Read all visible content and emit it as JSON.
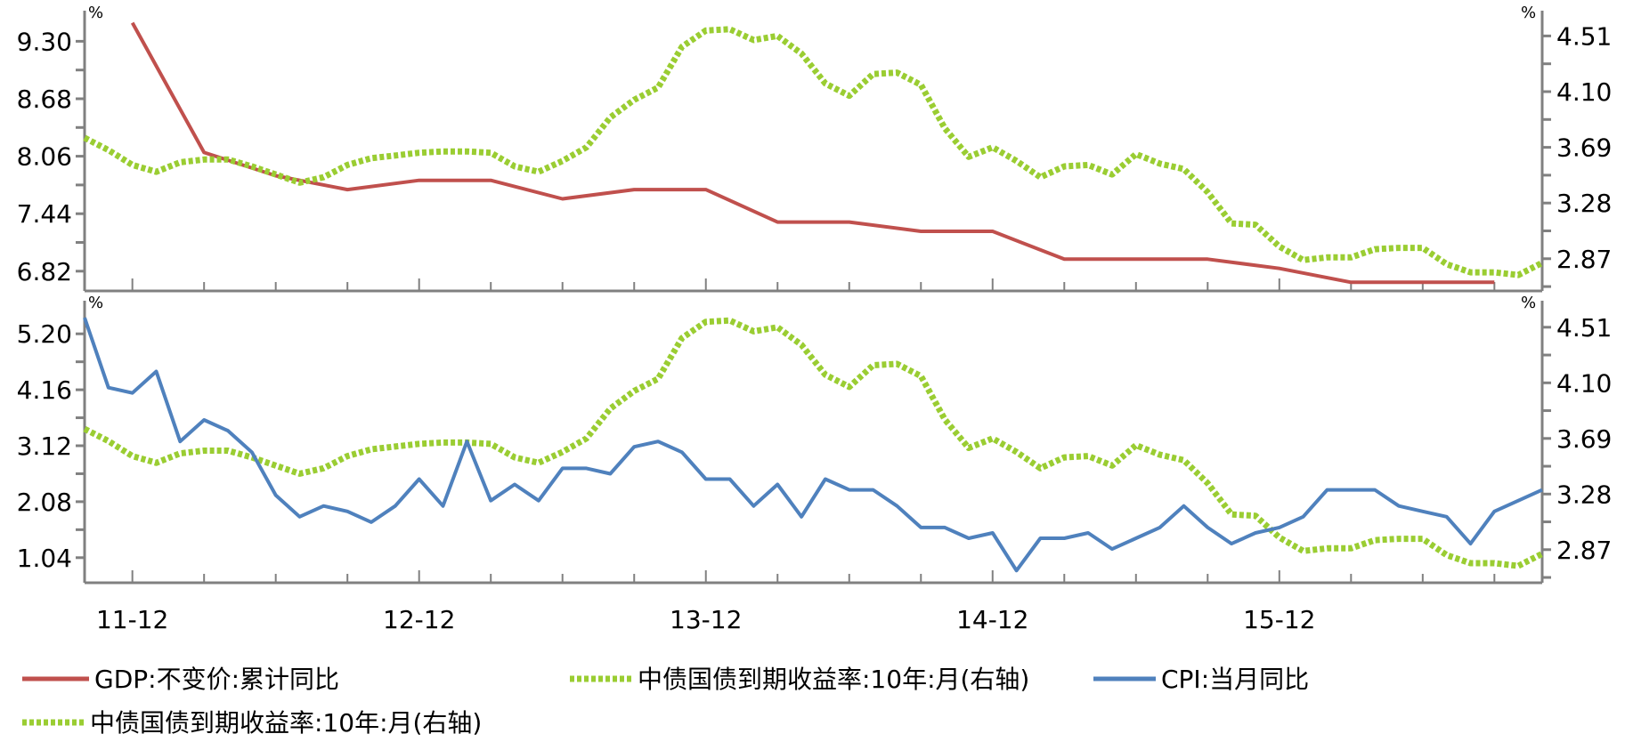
{
  "chart_data": [
    {
      "type": "line",
      "title": "",
      "left_unit": "%",
      "right_unit": "%",
      "left_ticks": [
        "9.30",
        "8.68",
        "8.06",
        "7.44",
        "6.82"
      ],
      "left_ylim": [
        6.5,
        9.5
      ],
      "right_ticks": [
        "4.51",
        "4.10",
        "3.69",
        "3.28",
        "2.87"
      ],
      "right_ylim": [
        2.74,
        4.64
      ],
      "series": [
        {
          "name": "GDP:不变价:累计同比",
          "axis": "left",
          "color": "#c0504d",
          "style": "solid",
          "points": [
            [
              "2011-12",
              9.5
            ],
            [
              "2012-03",
              8.1
            ],
            [
              "2012-06",
              7.85
            ],
            [
              "2012-09",
              7.7
            ],
            [
              "2012-12",
              7.8
            ],
            [
              "2013-03",
              7.8
            ],
            [
              "2013-06",
              7.6
            ],
            [
              "2013-09",
              7.7
            ],
            [
              "2013-12",
              7.7
            ],
            [
              "2014-03",
              7.35
            ],
            [
              "2014-06",
              7.35
            ],
            [
              "2014-09",
              7.25
            ],
            [
              "2014-12",
              7.25
            ],
            [
              "2015-03",
              6.95
            ],
            [
              "2015-06",
              6.95
            ],
            [
              "2015-09",
              6.95
            ],
            [
              "2015-12",
              6.85
            ],
            [
              "2016-03",
              6.7
            ],
            [
              "2016-06",
              6.7
            ],
            [
              "2016-09",
              6.7
            ]
          ]
        },
        {
          "name": "中债国债到期收益率:10年:月(右轴)",
          "axis": "right",
          "color": "#9acd32",
          "style": "dotted",
          "points": [
            [
              "2011-10",
              3.76
            ],
            [
              "2011-11",
              3.67
            ],
            [
              "2011-12",
              3.56
            ],
            [
              "2012-01",
              3.51
            ],
            [
              "2012-02",
              3.58
            ],
            [
              "2012-03",
              3.6
            ],
            [
              "2012-04",
              3.6
            ],
            [
              "2012-05",
              3.55
            ],
            [
              "2012-06",
              3.49
            ],
            [
              "2012-07",
              3.43
            ],
            [
              "2012-08",
              3.47
            ],
            [
              "2012-09",
              3.56
            ],
            [
              "2012-10",
              3.61
            ],
            [
              "2012-11",
              3.63
            ],
            [
              "2012-12",
              3.65
            ],
            [
              "2013-01",
              3.66
            ],
            [
              "2013-02",
              3.66
            ],
            [
              "2013-03",
              3.65
            ],
            [
              "2013-04",
              3.55
            ],
            [
              "2013-05",
              3.51
            ],
            [
              "2013-06",
              3.59
            ],
            [
              "2013-07",
              3.69
            ],
            [
              "2013-08",
              3.91
            ],
            [
              "2013-09",
              4.04
            ],
            [
              "2013-10",
              4.13
            ],
            [
              "2013-11",
              4.43
            ],
            [
              "2013-12",
              4.55
            ],
            [
              "2014-01",
              4.56
            ],
            [
              "2014-02",
              4.48
            ],
            [
              "2014-03",
              4.51
            ],
            [
              "2014-04",
              4.38
            ],
            [
              "2014-05",
              4.16
            ],
            [
              "2014-06",
              4.07
            ],
            [
              "2014-07",
              4.23
            ],
            [
              "2014-08",
              4.24
            ],
            [
              "2014-09",
              4.15
            ],
            [
              "2014-10",
              3.83
            ],
            [
              "2014-11",
              3.62
            ],
            [
              "2014-12",
              3.69
            ],
            [
              "2015-01",
              3.59
            ],
            [
              "2015-02",
              3.47
            ],
            [
              "2015-03",
              3.55
            ],
            [
              "2015-04",
              3.56
            ],
            [
              "2015-05",
              3.49
            ],
            [
              "2015-06",
              3.64
            ],
            [
              "2015-07",
              3.57
            ],
            [
              "2015-08",
              3.53
            ],
            [
              "2015-09",
              3.36
            ],
            [
              "2015-10",
              3.13
            ],
            [
              "2015-11",
              3.12
            ],
            [
              "2015-12",
              2.96
            ],
            [
              "2016-01",
              2.86
            ],
            [
              "2016-02",
              2.88
            ],
            [
              "2016-03",
              2.88
            ],
            [
              "2016-04",
              2.94
            ],
            [
              "2016-05",
              2.95
            ],
            [
              "2016-06",
              2.95
            ],
            [
              "2016-07",
              2.83
            ],
            [
              "2016-08",
              2.77
            ],
            [
              "2016-09",
              2.77
            ],
            [
              "2016-10",
              2.75
            ],
            [
              "2016-11",
              2.84
            ]
          ]
        }
      ]
    },
    {
      "type": "line",
      "title": "",
      "left_unit": "%",
      "right_unit": "%",
      "left_ticks": [
        "5.20",
        "4.16",
        "3.12",
        "2.08",
        "1.04"
      ],
      "left_ylim": [
        0.6,
        5.6
      ],
      "right_ticks": [
        "4.51",
        "4.10",
        "3.69",
        "3.28",
        "2.87"
      ],
      "right_ylim": [
        2.74,
        4.64
      ],
      "series": [
        {
          "name": "中债国债到期收益率:10年:月(右轴)",
          "axis": "right",
          "color": "#9acd32",
          "style": "dotted",
          "points": [
            [
              "2011-10",
              3.76
            ],
            [
              "2011-11",
              3.67
            ],
            [
              "2011-12",
              3.56
            ],
            [
              "2012-01",
              3.51
            ],
            [
              "2012-02",
              3.58
            ],
            [
              "2012-03",
              3.6
            ],
            [
              "2012-04",
              3.6
            ],
            [
              "2012-05",
              3.55
            ],
            [
              "2012-06",
              3.49
            ],
            [
              "2012-07",
              3.43
            ],
            [
              "2012-08",
              3.47
            ],
            [
              "2012-09",
              3.56
            ],
            [
              "2012-10",
              3.61
            ],
            [
              "2012-11",
              3.63
            ],
            [
              "2012-12",
              3.65
            ],
            [
              "2013-01",
              3.66
            ],
            [
              "2013-02",
              3.66
            ],
            [
              "2013-03",
              3.65
            ],
            [
              "2013-04",
              3.55
            ],
            [
              "2013-05",
              3.51
            ],
            [
              "2013-06",
              3.59
            ],
            [
              "2013-07",
              3.69
            ],
            [
              "2013-08",
              3.91
            ],
            [
              "2013-09",
              4.04
            ],
            [
              "2013-10",
              4.13
            ],
            [
              "2013-11",
              4.43
            ],
            [
              "2013-12",
              4.55
            ],
            [
              "2014-01",
              4.56
            ],
            [
              "2014-02",
              4.48
            ],
            [
              "2014-03",
              4.51
            ],
            [
              "2014-04",
              4.38
            ],
            [
              "2014-05",
              4.16
            ],
            [
              "2014-06",
              4.07
            ],
            [
              "2014-07",
              4.23
            ],
            [
              "2014-08",
              4.24
            ],
            [
              "2014-09",
              4.15
            ],
            [
              "2014-10",
              3.83
            ],
            [
              "2014-11",
              3.62
            ],
            [
              "2014-12",
              3.69
            ],
            [
              "2015-01",
              3.59
            ],
            [
              "2015-02",
              3.47
            ],
            [
              "2015-03",
              3.55
            ],
            [
              "2015-04",
              3.56
            ],
            [
              "2015-05",
              3.49
            ],
            [
              "2015-06",
              3.64
            ],
            [
              "2015-07",
              3.57
            ],
            [
              "2015-08",
              3.53
            ],
            [
              "2015-09",
              3.36
            ],
            [
              "2015-10",
              3.13
            ],
            [
              "2015-11",
              3.12
            ],
            [
              "2015-12",
              2.96
            ],
            [
              "2016-01",
              2.86
            ],
            [
              "2016-02",
              2.88
            ],
            [
              "2016-03",
              2.88
            ],
            [
              "2016-04",
              2.94
            ],
            [
              "2016-05",
              2.95
            ],
            [
              "2016-06",
              2.95
            ],
            [
              "2016-07",
              2.83
            ],
            [
              "2016-08",
              2.77
            ],
            [
              "2016-09",
              2.77
            ],
            [
              "2016-10",
              2.75
            ],
            [
              "2016-11",
              2.84
            ]
          ]
        },
        {
          "name": "CPI:当月同比",
          "axis": "left",
          "color": "#4f81bd",
          "style": "solid",
          "points": [
            [
              "2011-10",
              5.5
            ],
            [
              "2011-11",
              4.2
            ],
            [
              "2011-12",
              4.1
            ],
            [
              "2012-01",
              4.5
            ],
            [
              "2012-02",
              3.2
            ],
            [
              "2012-03",
              3.6
            ],
            [
              "2012-04",
              3.4
            ],
            [
              "2012-05",
              3.0
            ],
            [
              "2012-06",
              2.2
            ],
            [
              "2012-07",
              1.8
            ],
            [
              "2012-08",
              2.0
            ],
            [
              "2012-09",
              1.9
            ],
            [
              "2012-10",
              1.7
            ],
            [
              "2012-11",
              2.0
            ],
            [
              "2012-12",
              2.5
            ],
            [
              "2013-01",
              2.0
            ],
            [
              "2013-02",
              3.2
            ],
            [
              "2013-03",
              2.1
            ],
            [
              "2013-04",
              2.4
            ],
            [
              "2013-05",
              2.1
            ],
            [
              "2013-06",
              2.7
            ],
            [
              "2013-07",
              2.7
            ],
            [
              "2013-08",
              2.6
            ],
            [
              "2013-09",
              3.1
            ],
            [
              "2013-10",
              3.2
            ],
            [
              "2013-11",
              3.0
            ],
            [
              "2013-12",
              2.5
            ],
            [
              "2014-01",
              2.5
            ],
            [
              "2014-02",
              2.0
            ],
            [
              "2014-03",
              2.4
            ],
            [
              "2014-04",
              1.8
            ],
            [
              "2014-05",
              2.5
            ],
            [
              "2014-06",
              2.3
            ],
            [
              "2014-07",
              2.3
            ],
            [
              "2014-08",
              2.0
            ],
            [
              "2014-09",
              1.6
            ],
            [
              "2014-10",
              1.6
            ],
            [
              "2014-11",
              1.4
            ],
            [
              "2014-12",
              1.5
            ],
            [
              "2015-01",
              0.8
            ],
            [
              "2015-02",
              1.4
            ],
            [
              "2015-03",
              1.4
            ],
            [
              "2015-04",
              1.5
            ],
            [
              "2015-05",
              1.2
            ],
            [
              "2015-06",
              1.4
            ],
            [
              "2015-07",
              1.6
            ],
            [
              "2015-08",
              2.0
            ],
            [
              "2015-09",
              1.6
            ],
            [
              "2015-10",
              1.3
            ],
            [
              "2015-11",
              1.5
            ],
            [
              "2015-12",
              1.6
            ],
            [
              "2016-01",
              1.8
            ],
            [
              "2016-02",
              2.3
            ],
            [
              "2016-03",
              2.3
            ],
            [
              "2016-04",
              2.3
            ],
            [
              "2016-05",
              2.0
            ],
            [
              "2016-06",
              1.9
            ],
            [
              "2016-07",
              1.8
            ],
            [
              "2016-08",
              1.3
            ],
            [
              "2016-09",
              1.9
            ],
            [
              "2016-10",
              2.1
            ],
            [
              "2016-11",
              2.3
            ]
          ]
        }
      ]
    }
  ],
  "x_axis": {
    "start": "2011-10",
    "end": "2016-11",
    "ticks": [
      "2011-12",
      "2012-03",
      "2012-06",
      "2012-09",
      "2012-12",
      "2013-03",
      "2013-06",
      "2013-09",
      "2013-12",
      "2014-03",
      "2014-06",
      "2014-09",
      "2014-12",
      "2015-03",
      "2015-06",
      "2015-09",
      "2015-12",
      "2016-03",
      "2016-06",
      "2016-09"
    ],
    "labels": [
      {
        "date": "2011-12",
        "text": "11-12"
      },
      {
        "date": "2012-12",
        "text": "12-12"
      },
      {
        "date": "2013-12",
        "text": "13-12"
      },
      {
        "date": "2014-12",
        "text": "14-12"
      },
      {
        "date": "2015-12",
        "text": "15-12"
      }
    ]
  },
  "legend": {
    "placement": "bottom",
    "entries": [
      {
        "label": "GDP:不变价:累计同比",
        "color": "#c0504d",
        "style": "solid"
      },
      {
        "label": "中债国债到期收益率:10年:月(右轴)",
        "color": "#9acd32",
        "style": "dotted"
      },
      {
        "label": "CPI:当月同比",
        "color": "#4f81bd",
        "style": "solid"
      },
      {
        "label": "中债国债到期收益率:10年:月(右轴)",
        "color": "#9acd32",
        "style": "dotted"
      }
    ]
  }
}
